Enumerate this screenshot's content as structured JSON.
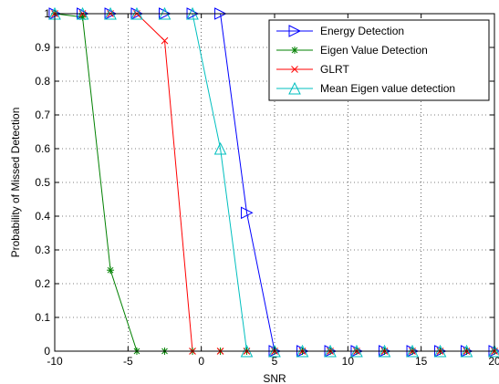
{
  "chart_data": {
    "type": "line",
    "xlabel": "SNR",
    "ylabel": "Probability of Missed Detection",
    "xlim": [
      -10,
      20
    ],
    "ylim": [
      0,
      1
    ],
    "xticks": [
      "-10",
      "-5",
      "0",
      "5",
      "10",
      "15",
      "20"
    ],
    "yticks": [
      "0",
      "0.1",
      "0.2",
      "0.3",
      "0.4",
      "0.5",
      "0.6",
      "0.7",
      "0.8",
      "0.9",
      "1"
    ],
    "grid": true,
    "legend_position": "top-right",
    "series": [
      {
        "name": "Energy Detection",
        "color": "#0000ff",
        "marker": "triangle-right",
        "x": [
          -10,
          -8.1,
          -6.2,
          -4.4,
          -2.5,
          -0.6,
          1.3,
          3.1,
          5,
          6.9,
          8.8,
          10.6,
          12.5,
          14.4,
          16.3,
          18.1,
          20
        ],
        "y": [
          1,
          1,
          1,
          1,
          1,
          1,
          1,
          0.41,
          0,
          0,
          0,
          0,
          0,
          0,
          0,
          0,
          0
        ]
      },
      {
        "name": "Eigen Value Detection",
        "color": "#008000",
        "marker": "star",
        "x": [
          -10,
          -8.1,
          -6.2,
          -4.4,
          -2.5,
          -0.6,
          1.3,
          3.1,
          5,
          6.9,
          8.8,
          10.6,
          12.5,
          14.4,
          16.3,
          18.1,
          20
        ],
        "y": [
          1,
          0.99,
          0.24,
          0,
          0,
          0,
          0,
          0,
          0,
          0,
          0,
          0,
          0,
          0,
          0,
          0,
          0
        ]
      },
      {
        "name": "GLRT",
        "color": "#ff0000",
        "marker": "x",
        "x": [
          -10,
          -8.1,
          -6.2,
          -4.4,
          -2.5,
          -0.6,
          1.3,
          3.1,
          5,
          6.9,
          8.8,
          10.6,
          12.5,
          14.4,
          16.3,
          18.1,
          20
        ],
        "y": [
          1,
          1,
          1,
          1,
          0.92,
          0,
          0,
          0,
          0,
          0,
          0,
          0,
          0,
          0,
          0,
          0,
          0
        ]
      },
      {
        "name": "Mean Eigen value detection",
        "color": "#00bfbf",
        "marker": "triangle-up",
        "x": [
          -10,
          -8.1,
          -6.2,
          -4.4,
          -2.5,
          -0.6,
          1.3,
          3.1,
          5,
          6.9,
          8.8,
          10.6,
          12.5,
          14.4,
          16.3,
          18.1,
          20
        ],
        "y": [
          1,
          1,
          1,
          1,
          1,
          1,
          0.6,
          0,
          0,
          0,
          0,
          0,
          0,
          0,
          0,
          0,
          0
        ]
      }
    ]
  }
}
